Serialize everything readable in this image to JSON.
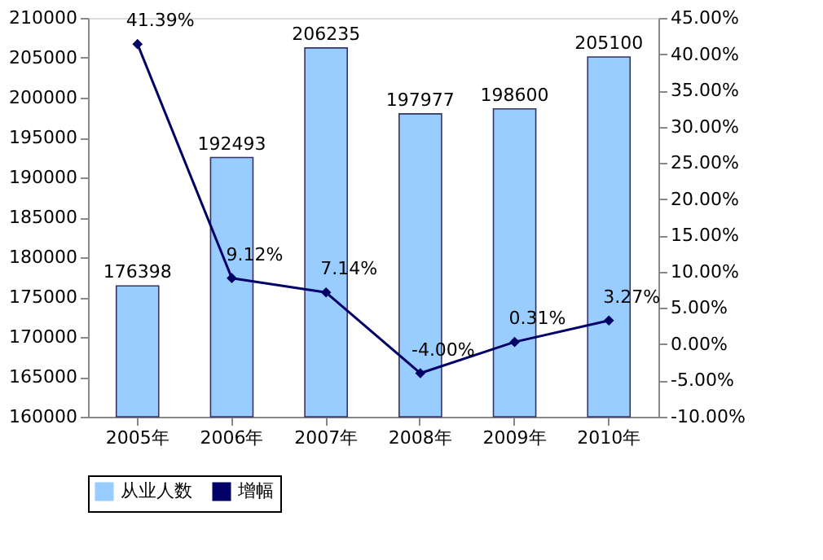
{
  "chart_data": {
    "type": "bar",
    "categories": [
      "2005年",
      "2006年",
      "2007年",
      "2008年",
      "2009年",
      "2010年"
    ],
    "series": [
      {
        "name": "从业人数",
        "color": "#99ccff",
        "values": [
          176398,
          192493,
          206235,
          197977,
          198600,
          205100
        ],
        "value_labels": [
          "176398",
          "192493",
          "206235",
          "197977",
          "198600",
          "205100"
        ]
      },
      {
        "name": "增幅",
        "type": "line",
        "axis": "y2",
        "color": "#000066",
        "marker": "diamond",
        "line_style": "solid",
        "values": [
          41.39,
          9.12,
          7.14,
          -4.0,
          0.31,
          3.27
        ],
        "value_labels": [
          "41.39%",
          "9.12%",
          "7.14%",
          "-4.00%",
          "0.31%",
          "3.27%"
        ]
      }
    ],
    "ylim": [
      160000,
      210000
    ],
    "yticks": [
      160000,
      165000,
      170000,
      175000,
      180000,
      185000,
      190000,
      195000,
      200000,
      205000,
      210000
    ],
    "y2lim": [
      -10,
      45
    ],
    "y2ticks": [
      {
        "value": -10,
        "label": "-10.00%"
      },
      {
        "value": -5,
        "label": "-5.00%"
      },
      {
        "value": 0,
        "label": "0.00%"
      },
      {
        "value": 5,
        "label": "5.00%"
      },
      {
        "value": 10,
        "label": "10.00%"
      },
      {
        "value": 15,
        "label": "15.00%"
      },
      {
        "value": 20,
        "label": "20.00%"
      },
      {
        "value": 25,
        "label": "25.00%"
      },
      {
        "value": 30,
        "label": "30.00%"
      },
      {
        "value": 35,
        "label": "35.00%"
      },
      {
        "value": 40,
        "label": "40.00%"
      },
      {
        "value": 45,
        "label": "45.00%"
      }
    ],
    "grid": false,
    "legend": "bottom"
  }
}
